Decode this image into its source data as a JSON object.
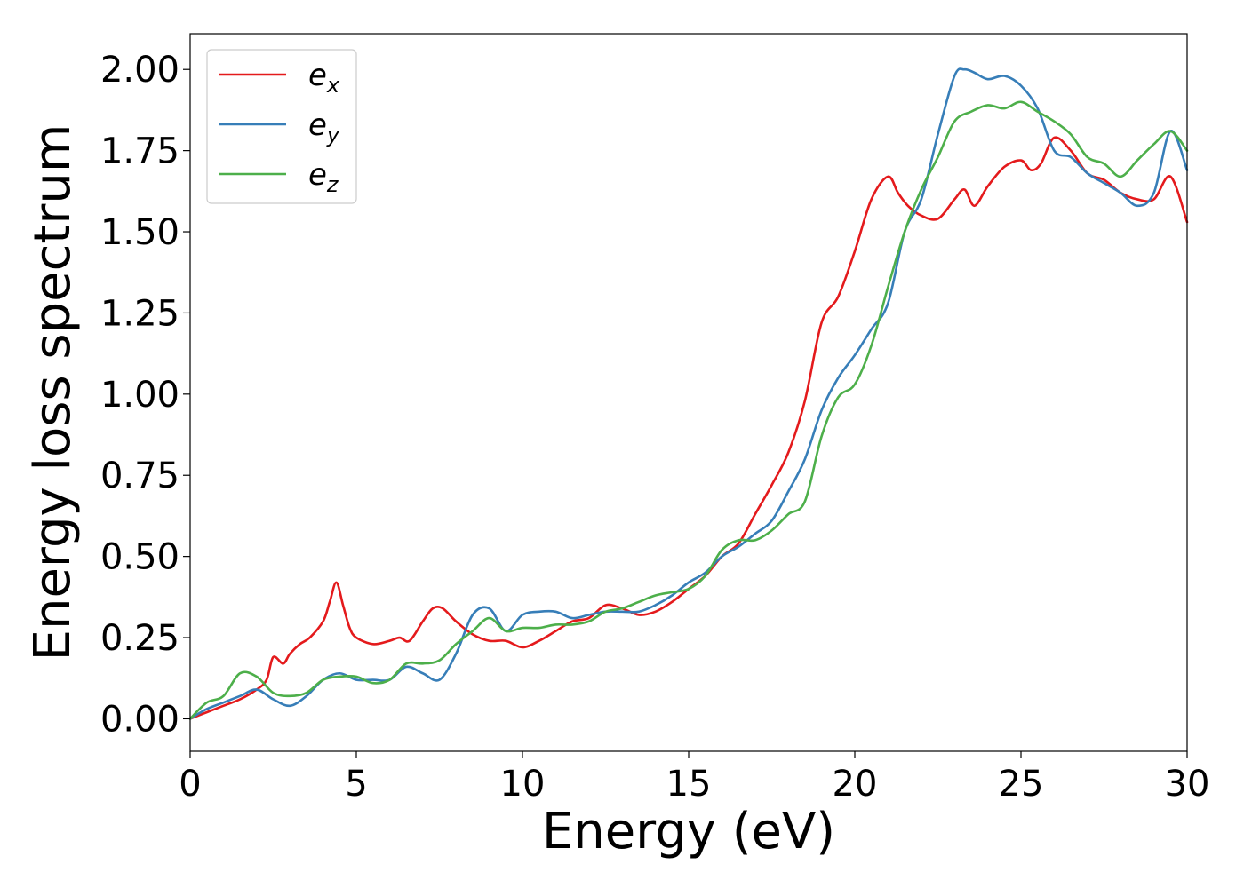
{
  "chart_data": {
    "type": "line",
    "title": "",
    "xlabel": "Energy (eV)",
    "ylabel": "Energy loss spectrum",
    "xlim": [
      0,
      30
    ],
    "ylim": [
      -0.1,
      2.11
    ],
    "xticks": [
      0,
      5,
      10,
      15,
      20,
      25,
      30
    ],
    "xtick_labels": [
      "0",
      "5",
      "10",
      "15",
      "20",
      "25",
      "30"
    ],
    "yticks": [
      0.0,
      0.25,
      0.5,
      0.75,
      1.0,
      1.25,
      1.5,
      1.75,
      2.0
    ],
    "ytick_labels": [
      "0.00",
      "0.25",
      "0.50",
      "0.75",
      "1.00",
      "1.25",
      "1.50",
      "1.75",
      "2.00"
    ],
    "grid": false,
    "legend": "top-left",
    "series": [
      {
        "name": "e_x",
        "label_base": "e",
        "label_sub": "x",
        "color": "#e41a1c",
        "x": [
          0,
          0.5,
          1,
          1.5,
          2,
          2.3,
          2.5,
          2.8,
          3,
          3.3,
          3.6,
          4,
          4.2,
          4.4,
          4.6,
          4.8,
          5,
          5.5,
          6,
          6.3,
          6.6,
          7,
          7.3,
          7.6,
          8,
          8.5,
          9,
          9.5,
          10,
          10.5,
          11,
          11.5,
          12,
          12.5,
          13,
          13.5,
          14,
          14.5,
          15,
          15.5,
          16,
          16.5,
          17,
          17.5,
          18,
          18.5,
          19,
          19.5,
          20,
          20.5,
          21,
          21.3,
          21.6,
          22,
          22.5,
          23,
          23.3,
          23.6,
          24,
          24.5,
          25,
          25.3,
          25.6,
          26,
          26.5,
          27,
          27.5,
          28,
          28.5,
          29,
          29.5,
          30
        ],
        "y": [
          0.0,
          0.02,
          0.04,
          0.06,
          0.09,
          0.12,
          0.19,
          0.17,
          0.2,
          0.23,
          0.25,
          0.3,
          0.36,
          0.42,
          0.35,
          0.28,
          0.25,
          0.23,
          0.24,
          0.25,
          0.24,
          0.3,
          0.34,
          0.34,
          0.3,
          0.26,
          0.24,
          0.24,
          0.22,
          0.24,
          0.27,
          0.3,
          0.31,
          0.35,
          0.34,
          0.32,
          0.33,
          0.36,
          0.4,
          0.44,
          0.5,
          0.54,
          0.63,
          0.72,
          0.82,
          0.98,
          1.22,
          1.3,
          1.44,
          1.6,
          1.67,
          1.62,
          1.58,
          1.55,
          1.54,
          1.6,
          1.63,
          1.58,
          1.64,
          1.7,
          1.72,
          1.69,
          1.71,
          1.79,
          1.75,
          1.68,
          1.66,
          1.62,
          1.6,
          1.6,
          1.67,
          1.53
        ]
      },
      {
        "name": "e_y",
        "label_base": "e",
        "label_sub": "y",
        "color": "#377eb8",
        "x": [
          0,
          0.5,
          1,
          1.5,
          2,
          2.5,
          3,
          3.5,
          4,
          4.5,
          5,
          5.5,
          6,
          6.5,
          7,
          7.5,
          8,
          8.5,
          9,
          9.5,
          10,
          10.5,
          11,
          11.5,
          12,
          12.5,
          13,
          13.5,
          14,
          14.5,
          15,
          15.5,
          16,
          16.5,
          17,
          17.5,
          18,
          18.5,
          19,
          19.5,
          20,
          20.5,
          21,
          21.5,
          22,
          22.5,
          23,
          23.3,
          23.6,
          24,
          24.5,
          25,
          25.5,
          26,
          26.5,
          27,
          27.5,
          28,
          28.5,
          29,
          29.5,
          30
        ],
        "y": [
          0.0,
          0.03,
          0.05,
          0.07,
          0.09,
          0.06,
          0.04,
          0.07,
          0.12,
          0.14,
          0.12,
          0.12,
          0.12,
          0.16,
          0.14,
          0.12,
          0.2,
          0.32,
          0.34,
          0.27,
          0.32,
          0.33,
          0.33,
          0.31,
          0.32,
          0.33,
          0.33,
          0.33,
          0.35,
          0.38,
          0.42,
          0.45,
          0.5,
          0.53,
          0.57,
          0.61,
          0.7,
          0.8,
          0.95,
          1.05,
          1.12,
          1.2,
          1.28,
          1.5,
          1.6,
          1.8,
          1.98,
          2.0,
          1.99,
          1.97,
          1.98,
          1.95,
          1.88,
          1.75,
          1.73,
          1.68,
          1.65,
          1.62,
          1.58,
          1.62,
          1.81,
          1.69
        ]
      },
      {
        "name": "e_z",
        "label_base": "e",
        "label_sub": "z",
        "color": "#4daf4a",
        "x": [
          0,
          0.5,
          1,
          1.5,
          2,
          2.5,
          3,
          3.5,
          4,
          4.5,
          5,
          5.5,
          6,
          6.5,
          7,
          7.5,
          8,
          8.5,
          9,
          9.5,
          10,
          10.5,
          11,
          11.5,
          12,
          12.5,
          13,
          13.5,
          14,
          14.5,
          15,
          15.5,
          16,
          16.5,
          17,
          17.5,
          18,
          18.5,
          19,
          19.5,
          20,
          20.5,
          21,
          21.5,
          22,
          22.5,
          23,
          23.5,
          24,
          24.5,
          25,
          25.5,
          26,
          26.5,
          27,
          27.5,
          28,
          28.5,
          29,
          29.5,
          30
        ],
        "y": [
          0.0,
          0.05,
          0.07,
          0.14,
          0.13,
          0.08,
          0.07,
          0.08,
          0.12,
          0.13,
          0.13,
          0.11,
          0.12,
          0.17,
          0.17,
          0.18,
          0.23,
          0.27,
          0.31,
          0.27,
          0.28,
          0.28,
          0.29,
          0.29,
          0.3,
          0.33,
          0.34,
          0.36,
          0.38,
          0.39,
          0.4,
          0.44,
          0.52,
          0.55,
          0.55,
          0.58,
          0.63,
          0.67,
          0.87,
          0.99,
          1.03,
          1.15,
          1.33,
          1.5,
          1.63,
          1.73,
          1.84,
          1.87,
          1.89,
          1.88,
          1.9,
          1.87,
          1.84,
          1.8,
          1.73,
          1.71,
          1.67,
          1.72,
          1.77,
          1.81,
          1.75
        ]
      }
    ]
  }
}
